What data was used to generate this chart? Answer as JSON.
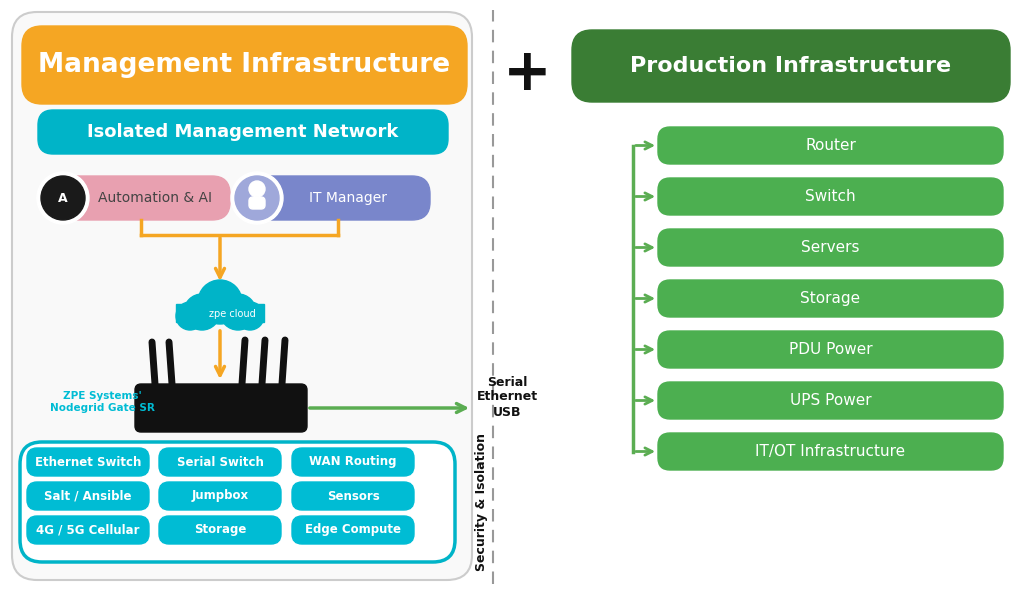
{
  "bg_color": "#ffffff",
  "orange_color": "#F5A623",
  "teal_color": "#00B4C8",
  "green_dark": "#3A7D34",
  "green_light": "#4CAF50",
  "purple_color": "#7986CB",
  "pink_color": "#E8A0B0",
  "cyan_color": "#00BCD4",
  "dashed_line_color": "#999999",
  "mgmt_title": "Management Infrastructure",
  "mgmt_subtitle": "Isolated Management Network",
  "prod_title": "Production Infrastructure",
  "auto_label": "Automation & AI",
  "itm_label": "IT Manager",
  "zpe_label": "ZPE Systems'\nNodegrid Gate SR",
  "feature_boxes": [
    [
      "Ethernet Switch",
      "Serial Switch",
      "WAN Routing"
    ],
    [
      "Salt / Ansible",
      "Jumpbox",
      "Sensors"
    ],
    [
      "4G / 5G Cellular",
      "Storage",
      "Edge Compute"
    ]
  ],
  "prod_items": [
    "Router",
    "Switch",
    "Servers",
    "Storage",
    "PDU Power",
    "UPS Power",
    "IT/OT Infrastructure"
  ],
  "serial_label": "Serial\nEthernet\nUSB",
  "security_label": "Security & Isolation",
  "plus_sign": "+",
  "arrow_color": "#F5A623",
  "prod_arrow_color": "#5BAD52"
}
